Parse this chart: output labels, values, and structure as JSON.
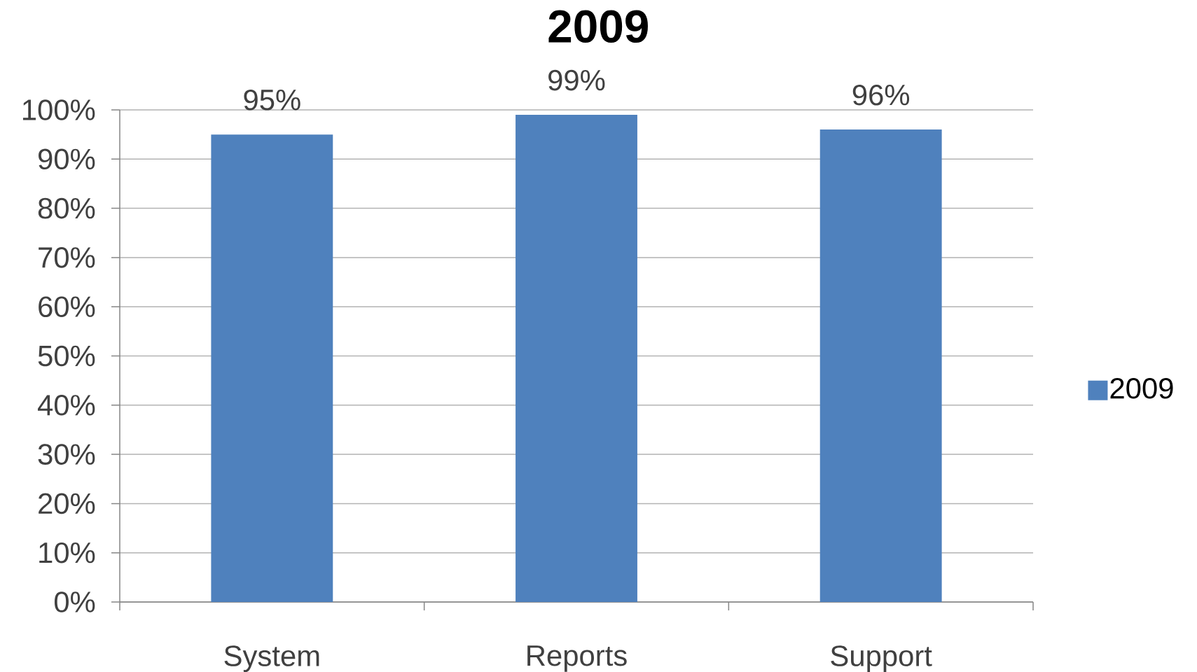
{
  "chart_data": {
    "type": "bar",
    "title": "2009",
    "categories": [
      "System",
      "Reports",
      "Support"
    ],
    "series": [
      {
        "name": "2009",
        "color": "#4f81bd",
        "values": [
          95,
          99,
          96
        ],
        "value_labels": [
          "95%",
          "99%",
          "96%"
        ]
      }
    ],
    "ylim": [
      0,
      100
    ],
    "yticks": [
      {
        "value": 0,
        "label": "0%"
      },
      {
        "value": 10,
        "label": "10%"
      },
      {
        "value": 20,
        "label": "20%"
      },
      {
        "value": 30,
        "label": "30%"
      },
      {
        "value": 40,
        "label": "40%"
      },
      {
        "value": 50,
        "label": "50%"
      },
      {
        "value": 60,
        "label": "60%"
      },
      {
        "value": 70,
        "label": "70%"
      },
      {
        "value": 80,
        "label": "80%"
      },
      {
        "value": 90,
        "label": "90%"
      },
      {
        "value": 100,
        "label": "100%"
      }
    ],
    "grid": "y",
    "legend": "right"
  }
}
